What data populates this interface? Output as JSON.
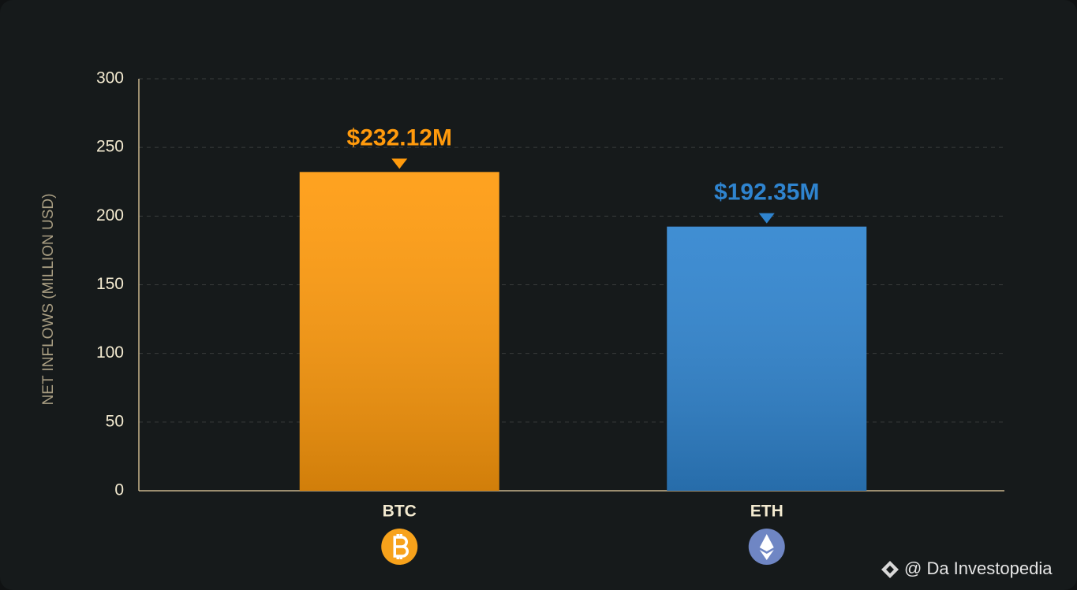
{
  "chart_data": {
    "type": "bar",
    "y_label": "NET INFLOWS (MILLION USD)",
    "categories": [
      "BTC",
      "ETH"
    ],
    "values": [
      232.12,
      192.35
    ],
    "value_labels": [
      "$232.12M",
      "$192.35M"
    ],
    "colors": [
      "#ff9a0c",
      "#2f84cf"
    ],
    "ylim": [
      0,
      300
    ],
    "yticks": [
      0,
      50,
      100,
      150,
      200,
      250,
      300
    ],
    "grid": true,
    "watermark": "@ Da Investopedia"
  }
}
